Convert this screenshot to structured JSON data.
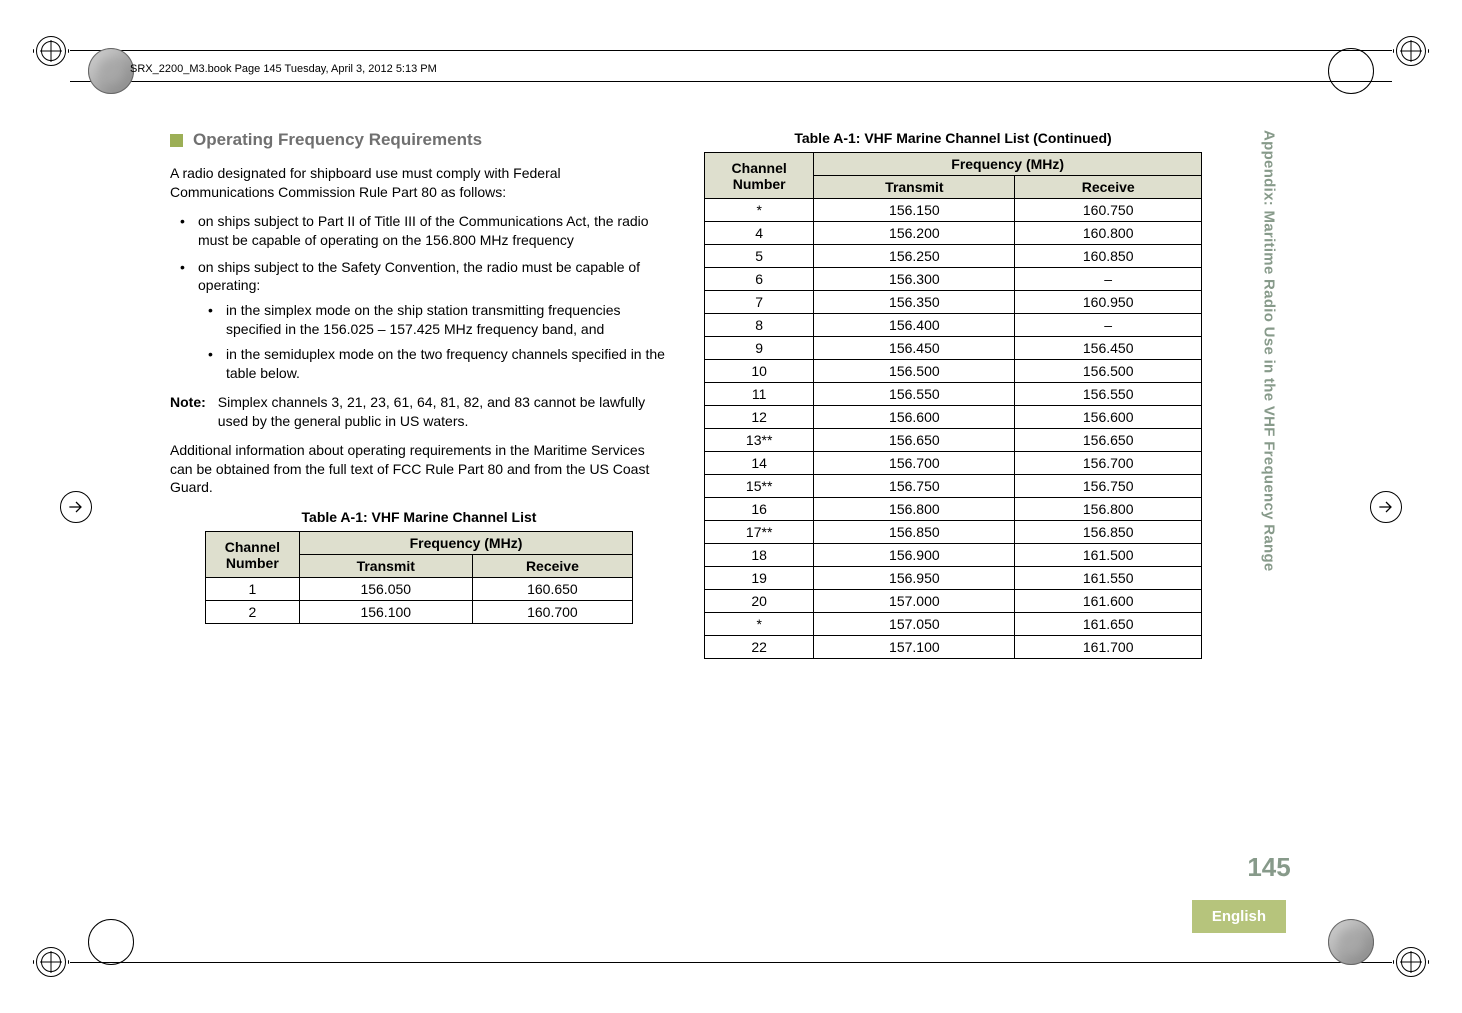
{
  "header": {
    "path": "SRX_2200_M3.book  Page 145  Tuesday, April 3, 2012  5:13 PM"
  },
  "section": {
    "title": "Operating Frequency Requirements",
    "intro": "A radio designated for shipboard use must comply with Federal Communications Commission Rule Part 80 as follows:",
    "b1": "on ships subject to Part II of Title III of the Communications Act, the radio must be capable of operating on the 156.800 MHz frequency",
    "b2": "on ships subject to the Safety Convention, the radio must be capable of operating:",
    "b2a": "in the simplex mode on the ship station transmitting frequencies specified in the 156.025 – 157.425 MHz frequency band, and",
    "b2b": "in the semiduplex mode on the two frequency channels specified in the table below.",
    "note_label": "Note:",
    "note_body": "Simplex channels 3, 21, 23, 61, 64, 81, 82, and 83 cannot be lawfully used by the general public in US waters.",
    "closing": "Additional information about operating requirements in the Maritime Services can be obtained from the full text of FCC Rule Part 80 and from the US Coast Guard."
  },
  "table1": {
    "caption": "Table A-1: VHF Marine Channel List",
    "header": {
      "ch": "Channel Number",
      "freq": "Frequency (MHz)",
      "tx": "Transmit",
      "rx": "Receive"
    },
    "rows": [
      {
        "ch": "1",
        "tx": "156.050",
        "rx": "160.650"
      },
      {
        "ch": "2",
        "tx": "156.100",
        "rx": "160.700"
      }
    ]
  },
  "table2": {
    "caption": "Table A-1: VHF Marine Channel List (Continued)",
    "header": {
      "ch": "Channel Number",
      "freq": "Frequency (MHz)",
      "tx": "Transmit",
      "rx": "Receive"
    },
    "rows": [
      {
        "ch": "*",
        "tx": "156.150",
        "rx": "160.750"
      },
      {
        "ch": "4",
        "tx": "156.200",
        "rx": "160.800"
      },
      {
        "ch": "5",
        "tx": "156.250",
        "rx": "160.850"
      },
      {
        "ch": "6",
        "tx": "156.300",
        "rx": "–"
      },
      {
        "ch": "7",
        "tx": "156.350",
        "rx": "160.950"
      },
      {
        "ch": "8",
        "tx": "156.400",
        "rx": "–"
      },
      {
        "ch": "9",
        "tx": "156.450",
        "rx": "156.450"
      },
      {
        "ch": "10",
        "tx": "156.500",
        "rx": "156.500"
      },
      {
        "ch": "11",
        "tx": "156.550",
        "rx": "156.550"
      },
      {
        "ch": "12",
        "tx": "156.600",
        "rx": "156.600"
      },
      {
        "ch": "13**",
        "tx": "156.650",
        "rx": "156.650"
      },
      {
        "ch": "14",
        "tx": "156.700",
        "rx": "156.700"
      },
      {
        "ch": "15**",
        "tx": "156.750",
        "rx": "156.750"
      },
      {
        "ch": "16",
        "tx": "156.800",
        "rx": "156.800"
      },
      {
        "ch": "17**",
        "tx": "156.850",
        "rx": "156.850"
      },
      {
        "ch": "18",
        "tx": "156.900",
        "rx": "161.500"
      },
      {
        "ch": "19",
        "tx": "156.950",
        "rx": "161.550"
      },
      {
        "ch": "20",
        "tx": "157.000",
        "rx": "161.600"
      },
      {
        "ch": "*",
        "tx": "157.050",
        "rx": "161.650"
      },
      {
        "ch": "22",
        "tx": "157.100",
        "rx": "161.700"
      }
    ]
  },
  "sidebar": {
    "vtext": "Appendix: Maritime Radio Use in the VHF Frequency Range",
    "page": "145",
    "lang": "English"
  },
  "colors": {
    "heading_gray": "#707070",
    "square_green": "#9caf56",
    "table_header_bg": "#dedfce",
    "side_text": "#879a8a",
    "english_bg": "#b6c47c"
  }
}
